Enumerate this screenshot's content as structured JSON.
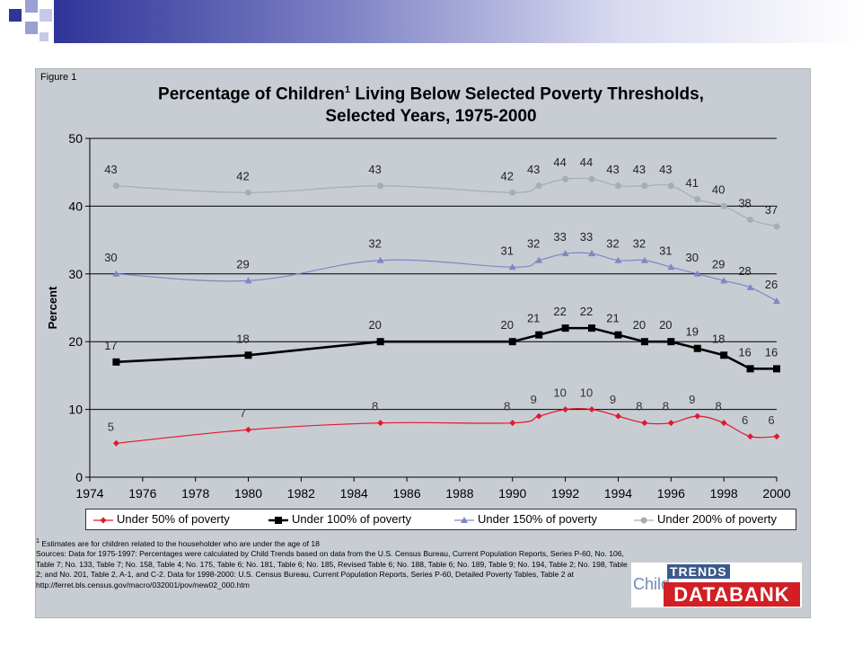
{
  "header": {
    "figure_label": "Figure 1",
    "title_part1": "Percentage of Children",
    "title_sup": "1",
    "title_part2": " Living Below Selected Poverty Thresholds,",
    "title_line2": "Selected Years, 1975-2000"
  },
  "colors": {
    "panel": "#c8cdd4",
    "under50": "#e0192b",
    "under100": "#000000",
    "under150": "#7f86c6",
    "under200": "#a6adb3",
    "accent_bar": "#2f3598"
  },
  "chart_data": {
    "type": "line",
    "xlabel": "",
    "ylabel": "Percent",
    "xlim": [
      1974,
      2000
    ],
    "ylim": [
      0,
      50
    ],
    "xticks": [
      1974,
      1976,
      1978,
      1980,
      1982,
      1984,
      1986,
      1988,
      1990,
      1992,
      1994,
      1996,
      1998,
      2000
    ],
    "yticks": [
      0,
      10,
      20,
      30,
      40,
      50
    ],
    "grid": "horizontal",
    "legend_position": "bottom",
    "x": [
      1975,
      1980,
      1985,
      1990,
      1991,
      1992,
      1993,
      1994,
      1995,
      1996,
      1997,
      1998,
      1999,
      2000
    ],
    "series": [
      {
        "name": "Under 50% of poverty",
        "key": "under50",
        "marker": "diamond",
        "values": [
          5,
          7,
          8,
          8,
          9,
          10,
          10,
          9,
          8,
          8,
          9,
          8,
          6,
          6
        ]
      },
      {
        "name": "Under 100% of poverty",
        "key": "under100",
        "marker": "square",
        "values": [
          17,
          18,
          20,
          20,
          21,
          22,
          22,
          21,
          20,
          20,
          19,
          18,
          16,
          16
        ]
      },
      {
        "name": "Under 150% of poverty",
        "key": "under150",
        "marker": "triangle",
        "values": [
          30,
          29,
          32,
          31,
          32,
          33,
          33,
          32,
          32,
          31,
          30,
          29,
          28,
          26
        ]
      },
      {
        "name": "Under 200% of poverty",
        "key": "under200",
        "marker": "circle",
        "values": [
          43,
          42,
          43,
          42,
          43,
          44,
          44,
          43,
          43,
          43,
          41,
          40,
          38,
          37
        ]
      }
    ]
  },
  "notes": {
    "footnote_mark": "1",
    "footnote": " Estimates are for children related to the householder who are under the age of 18",
    "sources": "Sources: Data for 1975-1997: Percentages were calculated by Child Trends based on data from the U.S. Census Bureau, Current Population Reports, Series P-60, No. 106, Table 7; No. 133, Table 7; No. 158, Table 4; No. 175, Table 6; No. 181, Table 6; No. 185, Revised Table 6; No. 188, Table 6; No. 189, Table 9; No. 194, Table 2; No. 198, Table 2; and No. 201, Table 2, A-1, and C-2. Data for 1998-2000: U.S. Census Bureau, Current Population Reports, Series P-60, Detailed Poverty Tables, Table 2 at",
    "url": "http://ferret.bls.census.gov/macro/032001/pov/new02_000.htm"
  },
  "logo": {
    "trends": "TRENDS",
    "child": "Child",
    "databank": "DATABANK"
  }
}
